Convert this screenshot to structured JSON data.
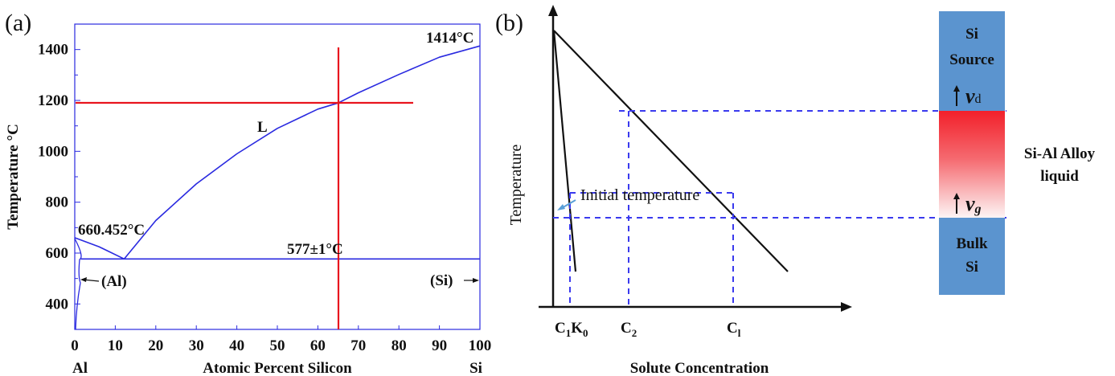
{
  "panel_a": {
    "label": "(a)",
    "ylabel": "Temperature °C",
    "xlabel": "Atomic Percent Silicon",
    "x_left_label": "Al",
    "x_right_label": "Si",
    "annotations": {
      "si_melt": "1414°C",
      "al_melt": "660.452°C",
      "eutectic": "577±1°C",
      "liquid": "L",
      "al_phase": "(Al)",
      "si_phase": "(Si)"
    }
  },
  "panel_b": {
    "label": "(b)",
    "ylabel": "Temperature",
    "xlabel": "Solute Concentration",
    "initial_temp": "Initial temperature",
    "tick_c1k0": "C",
    "tick_c1k0_sub1": "1",
    "tick_c1k0_k": "K",
    "tick_c1k0_sub2": "0",
    "tick_c2": "C",
    "tick_c2_sub": "2",
    "tick_c1": "C",
    "tick_c1_sub": "l"
  },
  "column": {
    "top_line1": "Si",
    "top_line2": "Source",
    "mid_line1": "Si-Al Alloy",
    "mid_line2": "liquid",
    "bottom_line1": "Bulk",
    "bottom_line2": "Si",
    "vd": "v",
    "vd_sub": "d",
    "vg": "v",
    "vg_sub": "g"
  },
  "colors": {
    "liquidus": "#2a2ae0",
    "red_marker": "#e8141e",
    "dashed": "#3a3aee",
    "column_blue": "#5b94cf",
    "column_red": "#f2202a"
  },
  "chart_data": [
    {
      "type": "line",
      "panel": "(a)",
      "xlabel": "Atomic Percent Silicon",
      "ylabel": "Temperature °C",
      "xlim": [
        0,
        100
      ],
      "ylim": [
        300,
        1500
      ],
      "xticks": [
        0,
        10,
        20,
        30,
        40,
        50,
        60,
        70,
        80,
        90,
        100
      ],
      "yticks": [
        400,
        600,
        800,
        1000,
        1200,
        1400
      ],
      "series": [
        {
          "x": [
            12.2,
            20,
            30,
            40,
            50,
            60,
            65,
            70,
            80,
            90,
            100
          ],
          "y": [
            577,
            728,
            872,
            990,
            1090,
            1166,
            1190,
            1230,
            1302,
            1370,
            1414
          ]
        },
        {
          "x": [
            0,
            6,
            12.2
          ],
          "y": [
            660.452,
            625,
            577
          ]
        },
        {
          "x": [
            1.5,
            100
          ],
          "y": [
            577,
            577
          ]
        }
      ],
      "markers": {
        "vertical_x": 65,
        "horizontal_y": 1190
      }
    }
  ]
}
